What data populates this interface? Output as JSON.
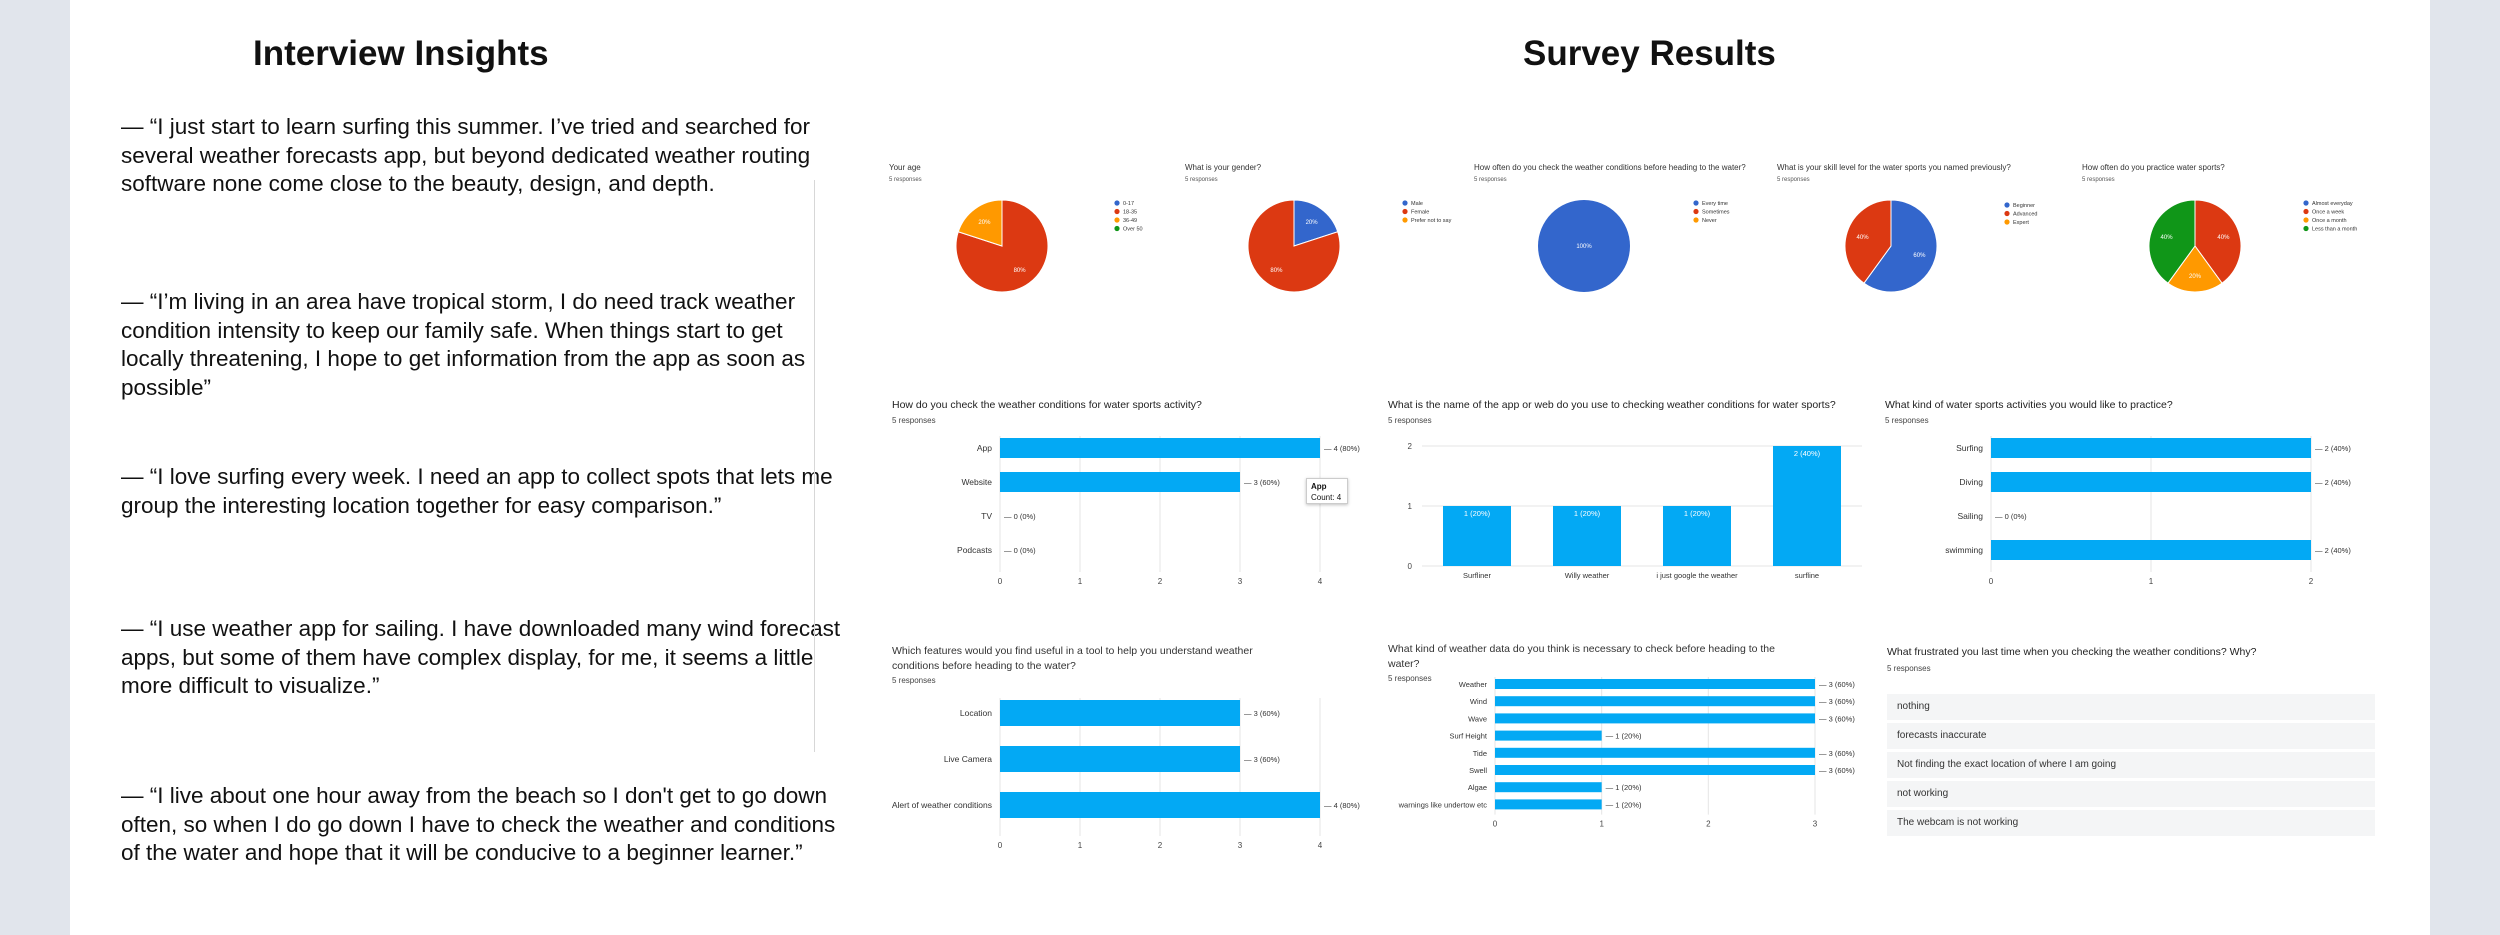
{
  "interview": {
    "heading": "Interview Insights",
    "quotes": [
      "— “I just start to learn surfing this summer. I’ve tried and searched for several weather forecasts app, but beyond dedicated weather routing software none come close to the beauty, design, and depth.",
      "— “I’m living in an area have tropical storm, I do need track weather condition intensity to keep our family safe. When things start to get locally threatening, I hope to get information from the app as soon as possible”",
      "— “I love surfing every week. I need an app to collect spots that lets me group the interesting location together for easy comparison.”",
      "— “I use weather app for sailing. I have downloaded many wind forecast apps, but some of them have complex display, for me, it seems a little more difficult to visualize.”",
      "— “I live about one hour away from the beach so I don't get to go down often, so when I do go down I have to check the weather and conditions of the water and hope that it will be conducive to a beginner learner.”"
    ]
  },
  "survey": {
    "heading": "Survey Results",
    "responses": "5 responses",
    "frustration": {
      "title": "What frustrated you last time when you checking the weather conditions? Why?",
      "answers": [
        "nothing",
        "forecasts inaccurate",
        "Not finding the exact location of where I am going",
        "not working",
        "The webcam is not working"
      ]
    },
    "tooltip": {
      "title": "App",
      "count": "Count: 4"
    }
  },
  "colors": {
    "blue": "#3366cc",
    "red": "#dc3912",
    "orange": "#ff9900",
    "green": "#109618",
    "bar": "#03a9f4"
  },
  "chart_data": [
    {
      "type": "pie",
      "title": "Your age",
      "subtitle": "5 responses",
      "legend": [
        "0-17",
        "18-35",
        "36-49",
        "Over 50"
      ],
      "slices": [
        {
          "label": "18-35",
          "value": 80,
          "display": "80%",
          "color": "red"
        },
        {
          "label": "36-49",
          "value": 20,
          "display": "20%",
          "color": "orange"
        }
      ]
    },
    {
      "type": "pie",
      "title": "What is your gender?",
      "subtitle": "5 responses",
      "legend": [
        "Male",
        "Female",
        "Prefer not to say"
      ],
      "slices": [
        {
          "label": "Male",
          "value": 20,
          "display": "20%",
          "color": "blue"
        },
        {
          "label": "Female",
          "value": 80,
          "display": "80%",
          "color": "red"
        }
      ]
    },
    {
      "type": "pie",
      "title": "How often do you check the weather conditions before heading to the water?",
      "subtitle": "5 responses",
      "legend": [
        "Every time",
        "Sometimes",
        "Never"
      ],
      "slices": [
        {
          "label": "Every time",
          "value": 100,
          "display": "100%",
          "color": "blue"
        }
      ]
    },
    {
      "type": "pie",
      "title": "What is your skill level for the water sports you named previously?",
      "subtitle": "5 responses",
      "legend": [
        "Beginner",
        "Advanced",
        "Expert"
      ],
      "slices": [
        {
          "label": "Beginner",
          "value": 60,
          "display": "60%",
          "color": "blue"
        },
        {
          "label": "Advanced",
          "value": 40,
          "display": "40%",
          "color": "red"
        }
      ]
    },
    {
      "type": "pie",
      "title": "How often do you practice water sports?",
      "subtitle": "5 responses",
      "legend": [
        "Almost everyday",
        "Once a week",
        "Once a month",
        "Less than a month"
      ],
      "slices": [
        {
          "label": "Once a week",
          "value": 40,
          "display": "40%",
          "color": "red"
        },
        {
          "label": "Once a month",
          "value": 20,
          "display": "20%",
          "color": "orange"
        },
        {
          "label": "Less than a month",
          "value": 40,
          "display": "40%",
          "color": "green"
        }
      ]
    },
    {
      "type": "bar",
      "orientation": "horizontal",
      "title": "How do you check the weather conditions for water sports activity?",
      "subtitle": "5 responses",
      "categories": [
        "App",
        "Website",
        "TV",
        "Podcasts"
      ],
      "values": [
        4,
        3,
        0,
        0
      ],
      "labels": [
        "4 (80%)",
        "3 (60%)",
        "0 (0%)",
        "0 (0%)"
      ],
      "xlim": [
        0,
        4
      ],
      "ticks": [
        "0",
        "1",
        "2",
        "3",
        "4"
      ]
    },
    {
      "type": "bar",
      "orientation": "vertical",
      "title": "What is the name of the app or web do you use to checking weather conditions for water sports?",
      "subtitle": "5 responses",
      "categories": [
        "Surfliner",
        "Willy weather",
        "i just google the weather",
        "surfline"
      ],
      "values": [
        1,
        1,
        1,
        2
      ],
      "labels": [
        "1 (20%)",
        "1 (20%)",
        "1 (20%)",
        "2 (40%)"
      ],
      "ylim": [
        0,
        2
      ],
      "ticks": [
        "0",
        "1",
        "2"
      ]
    },
    {
      "type": "bar",
      "orientation": "horizontal",
      "title": "What kind of water sports activities you would like to practice?",
      "subtitle": "5 responses",
      "categories": [
        "Surfing",
        "Diving",
        "Sailing",
        "swimming"
      ],
      "values": [
        2,
        2,
        0,
        2
      ],
      "labels": [
        "2 (40%)",
        "2 (40%)",
        "0 (0%)",
        "2 (40%)"
      ],
      "xlim": [
        0,
        2
      ],
      "ticks": [
        "0",
        "1",
        "2"
      ]
    },
    {
      "type": "bar",
      "orientation": "horizontal",
      "title": "Which features would you find useful in a tool to help you understand weather conditions before heading to the water?",
      "subtitle": "5 responses",
      "categories": [
        "Location",
        "Live Camera",
        "Alert of weather conditions"
      ],
      "values": [
        3,
        3,
        4
      ],
      "labels": [
        "3 (60%)",
        "3 (60%)",
        "4 (80%)"
      ],
      "xlim": [
        0,
        4
      ],
      "ticks": [
        "0",
        "1",
        "2",
        "3",
        "4"
      ]
    },
    {
      "type": "bar",
      "orientation": "horizontal",
      "title": "What kind of weather data do you think is necessary to check before heading to the water?",
      "subtitle": "5 responses",
      "categories": [
        "Weather",
        "Wind",
        "Wave",
        "Surf Height",
        "Tide",
        "Swell",
        "Algae",
        "warnings like undertow etc"
      ],
      "values": [
        3,
        3,
        3,
        1,
        3,
        3,
        1,
        1
      ],
      "labels": [
        "3 (60%)",
        "3 (60%)",
        "3 (60%)",
        "1 (20%)",
        "3 (60%)",
        "3 (60%)",
        "1 (20%)",
        "1 (20%)"
      ],
      "xlim": [
        0,
        3
      ],
      "ticks": [
        "0",
        "1",
        "2",
        "3"
      ]
    }
  ]
}
